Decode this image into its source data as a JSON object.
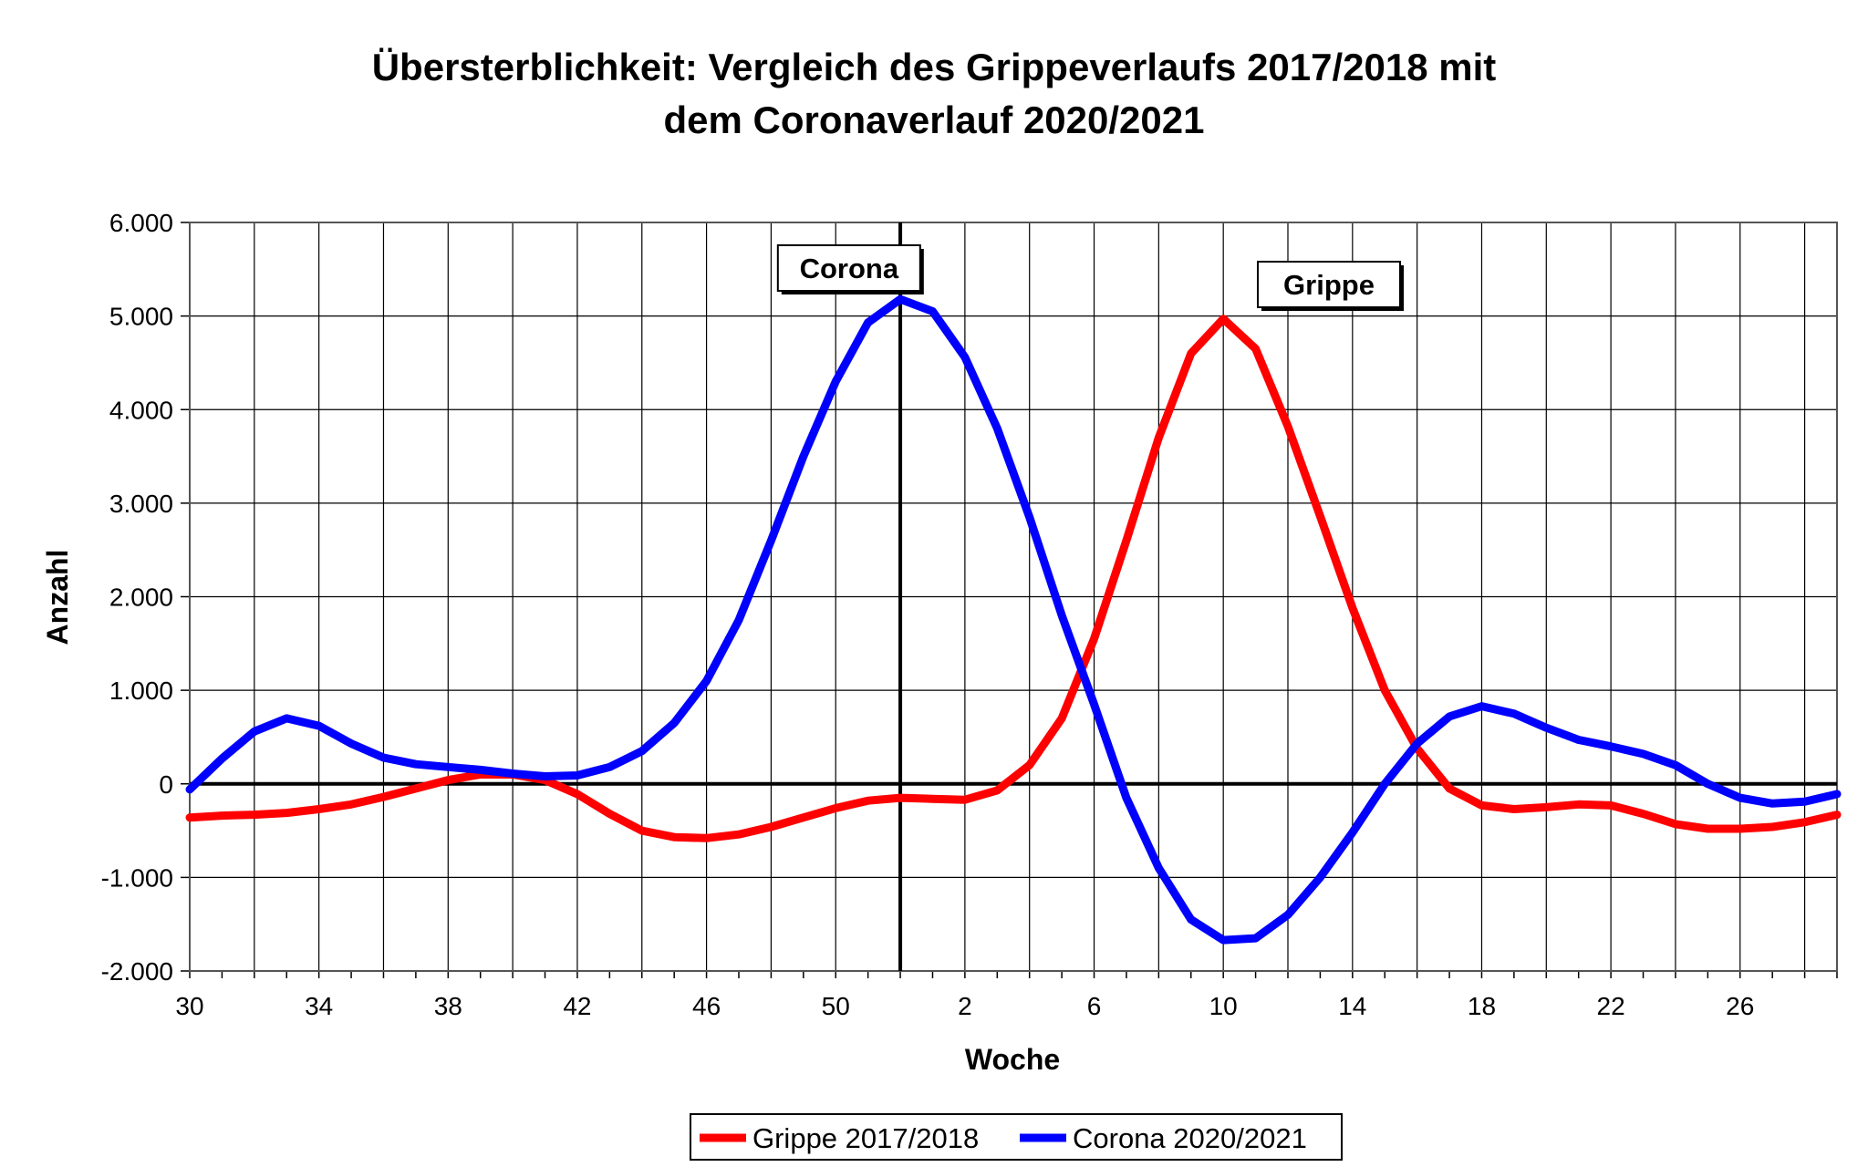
{
  "chart_data": {
    "type": "line",
    "title_lines": [
      "Übersterblichkeit: Vergleich des Grippeverlaufs 2017/2018 mit",
      "dem Coronaverlauf 2020/2021"
    ],
    "xlabel": "Woche",
    "ylabel": "Anzahl",
    "ylim": [
      -2000,
      6000
    ],
    "y_ticks": [
      {
        "value": 6000,
        "label": "6.000"
      },
      {
        "value": 5000,
        "label": "5.000"
      },
      {
        "value": 4000,
        "label": "4.000"
      },
      {
        "value": 3000,
        "label": "3.000"
      },
      {
        "value": 2000,
        "label": "2.000"
      },
      {
        "value": 1000,
        "label": "1.000"
      },
      {
        "value": 0,
        "label": "0"
      },
      {
        "value": -1000,
        "label": "-1.000"
      },
      {
        "value": -2000,
        "label": "-2.000"
      }
    ],
    "weeks": [
      30,
      31,
      32,
      33,
      34,
      35,
      36,
      37,
      38,
      39,
      40,
      41,
      42,
      43,
      44,
      45,
      46,
      47,
      48,
      49,
      50,
      51,
      52,
      1,
      2,
      3,
      4,
      5,
      6,
      7,
      8,
      9,
      10,
      11,
      12,
      13,
      14,
      15,
      16,
      17,
      18,
      19,
      20,
      21,
      22,
      23,
      24,
      25,
      26,
      27,
      28,
      29
    ],
    "x_tick_labels": [
      "30",
      "34",
      "38",
      "42",
      "46",
      "50",
      "2",
      "6",
      "10",
      "14",
      "18",
      "22",
      "26"
    ],
    "grid": true,
    "legend_position": "bottom",
    "series": [
      {
        "name": "Grippe 2017/2018",
        "color": "#ff0000",
        "values": [
          -360,
          -340,
          -330,
          -310,
          -270,
          -220,
          -140,
          -50,
          40,
          100,
          100,
          40,
          -110,
          -320,
          -500,
          -570,
          -580,
          -540,
          -460,
          -360,
          -260,
          -180,
          -150,
          -160,
          -170,
          -70,
          200,
          700,
          1550,
          2600,
          3700,
          4600,
          4970,
          4650,
          3820,
          2860,
          1880,
          1000,
          380,
          -50,
          -230,
          -270,
          -250,
          -220,
          -230,
          -320,
          -430,
          -480,
          -480,
          -460,
          -410,
          -330
        ]
      },
      {
        "name": "Corona 2020/2021",
        "color": "#0000ff",
        "values": [
          -60,
          270,
          560,
          700,
          620,
          430,
          280,
          210,
          180,
          150,
          110,
          80,
          90,
          180,
          350,
          650,
          1100,
          1750,
          2600,
          3500,
          4300,
          4930,
          5180,
          5050,
          4560,
          3800,
          2850,
          1800,
          850,
          -150,
          -900,
          -1450,
          -1670,
          -1650,
          -1400,
          -1000,
          -520,
          0,
          430,
          720,
          830,
          750,
          600,
          470,
          400,
          320,
          200,
          0,
          -150,
          -210,
          -190,
          -110
        ]
      }
    ],
    "annotations": [
      {
        "text": "Corona",
        "week": 49
      },
      {
        "text": "Grippe",
        "week": 12
      }
    ],
    "divider_week": 52
  }
}
